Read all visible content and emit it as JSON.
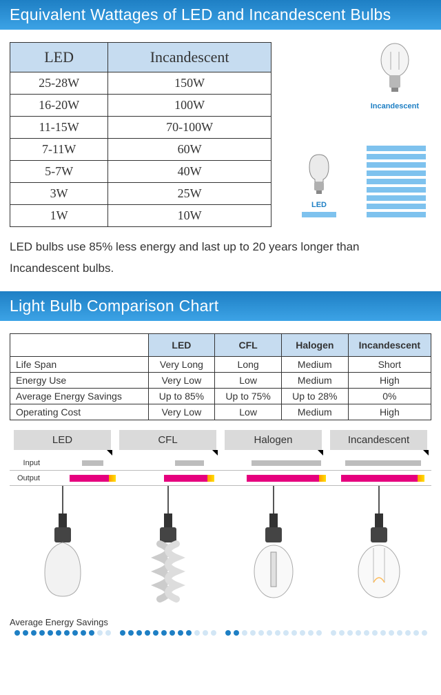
{
  "colors": {
    "banner_gradient_top": "#1e7fc4",
    "banner_gradient_bot": "#3ca3e6",
    "header_cell_bg": "#c6dcf0",
    "bar_blue": "#7ec2ee",
    "pink": "#e6007e",
    "dot_filled": "#1e7fc4",
    "dot_empty": "#d2e6f5",
    "tab_gray": "#dadada",
    "input_gray": "#bdbdbd"
  },
  "banner1": "Equivalent Wattages of LED and Incandescent Bulbs",
  "wattage_table": {
    "headers": [
      "LED",
      "Incandescent"
    ],
    "rows": [
      [
        "25-28W",
        "150W"
      ],
      [
        "16-20W",
        "100W"
      ],
      [
        "11-15W",
        "70-100W"
      ],
      [
        "7-11W",
        "60W"
      ],
      [
        "5-7W",
        "40W"
      ],
      [
        "3W",
        "25W"
      ],
      [
        "1W",
        "10W"
      ]
    ]
  },
  "side_graphic": {
    "led_label": "LED",
    "inc_label": "Incandescent",
    "inc_bars": 9,
    "led_bars": 1
  },
  "caption": "LED bulbs use 85% less energy and last up to 20 years longer than Incandescent bulbs.",
  "banner2": "Light Bulb Comparison Chart",
  "compare_table": {
    "headers": [
      "",
      "LED",
      "CFL",
      "Halogen",
      "Incandescent"
    ],
    "rows": [
      [
        "Life Span",
        "Very Long",
        "Long",
        "Medium",
        "Short"
      ],
      [
        "Energy Use",
        "Very Low",
        "Low",
        "Medium",
        "High"
      ],
      [
        "Average Energy Savings",
        "Up to 85%",
        "Up to 75%",
        "Up to 28%",
        "0%"
      ],
      [
        "Operating Cost",
        "Very Low",
        "Low",
        "Medium",
        "High"
      ]
    ]
  },
  "types": [
    "LED",
    "CFL",
    "Halogen",
    "Incandescent"
  ],
  "io": {
    "input_label": "Input",
    "output_label": "Output",
    "input_widths_pct": [
      22,
      30,
      72,
      78
    ],
    "output_widths_pct": [
      48,
      52,
      82,
      86
    ]
  },
  "energy_savings_label": "Average Energy Savings",
  "dots": {
    "total": 12,
    "filled": [
      10,
      9,
      2,
      0
    ]
  }
}
